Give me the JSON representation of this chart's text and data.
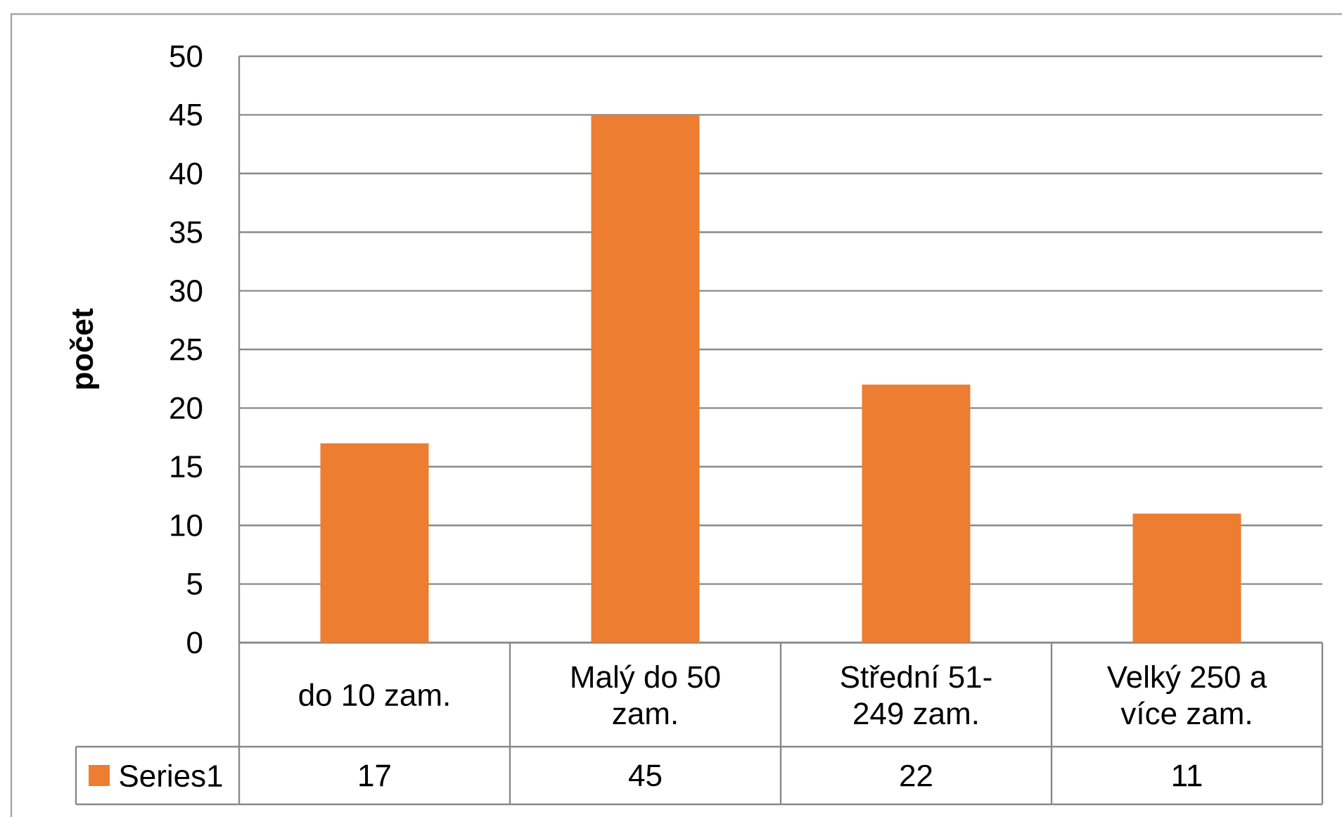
{
  "chart_data": {
    "type": "bar",
    "ylabel": "počet",
    "categories": [
      "do 10 zam.",
      "Malý do 50 zam.",
      "Střední  51-249 zam.",
      "Velký 250 a více zam."
    ],
    "series": [
      {
        "name": "Series1",
        "color": "#ed7d31",
        "values": [
          17,
          45,
          22,
          11
        ]
      }
    ],
    "ylim": [
      0,
      50
    ],
    "yticks": [
      0,
      5,
      10,
      15,
      20,
      25,
      30,
      35,
      40,
      45,
      50
    ],
    "grid": "y",
    "legend": "bottom",
    "data_labels": true
  }
}
